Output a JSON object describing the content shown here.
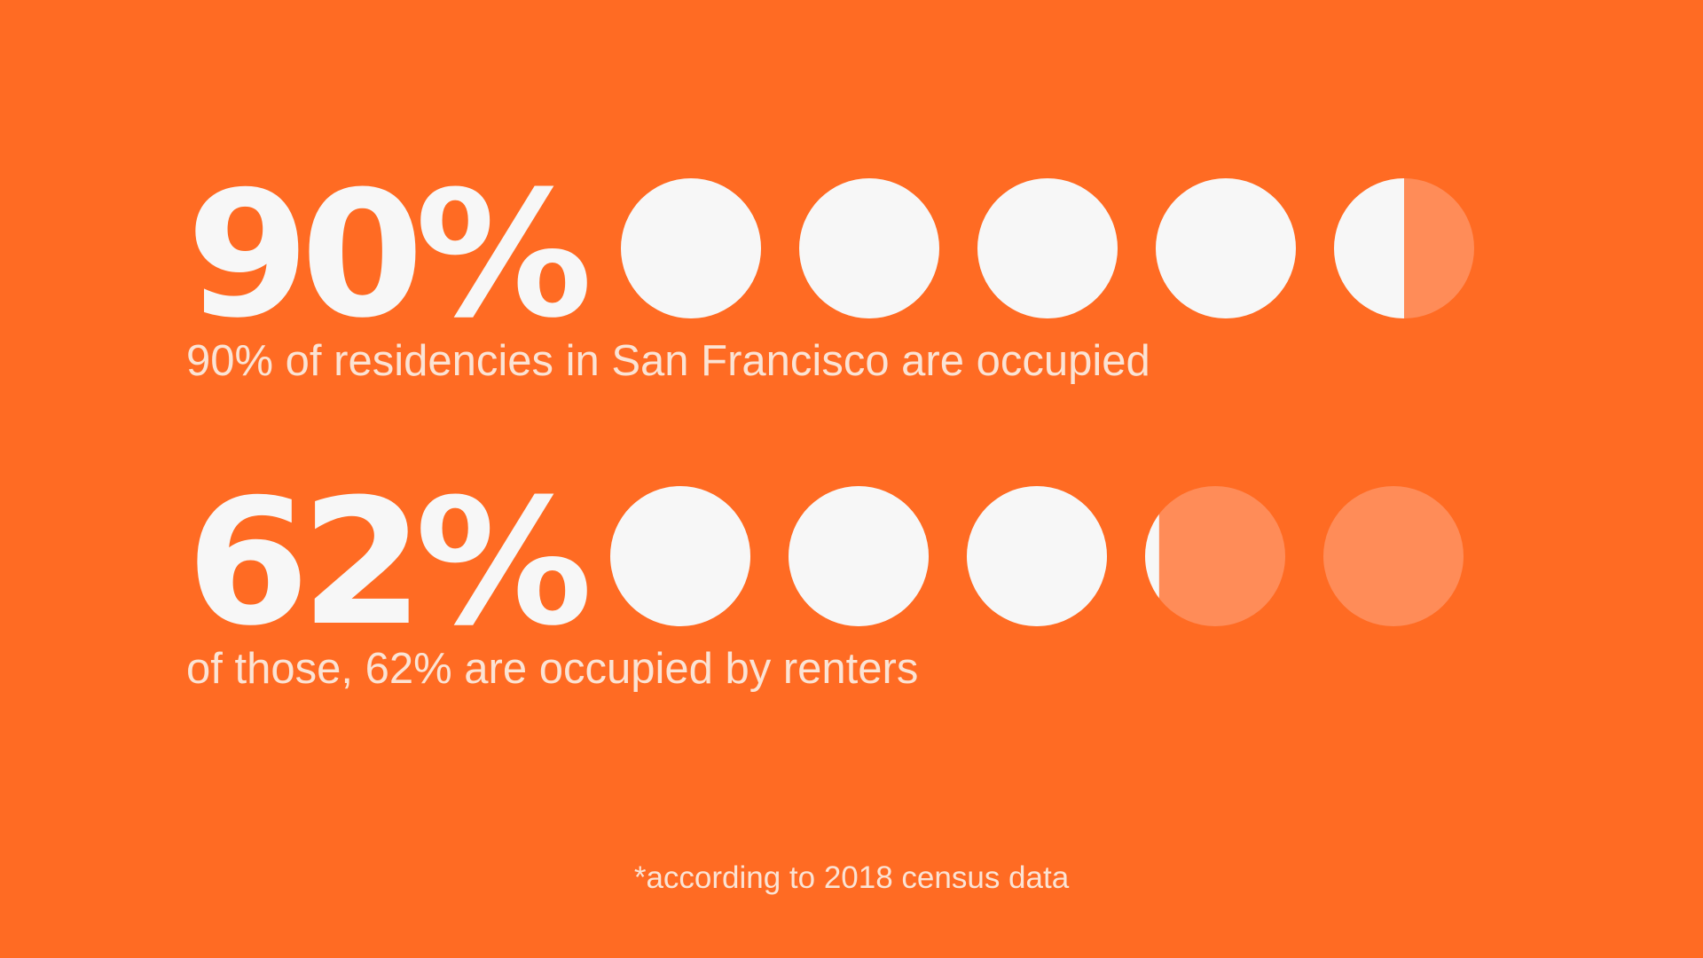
{
  "colors": {
    "background": "#FF6B23",
    "dot_filled": "#F7F7F7",
    "dot_empty": "#FF8C58"
  },
  "stats": [
    {
      "value_text": "90%",
      "caption": "90% of residencies in San Francisco are occupied"
    },
    {
      "value_text": "62%",
      "caption": "of those, 62% are occupied by renters"
    }
  ],
  "footnote": "*according to 2018 census data",
  "chart_data": [
    {
      "type": "pictogram",
      "total_icons": 5,
      "percent": 90,
      "label": "90%"
    },
    {
      "type": "pictogram",
      "total_icons": 5,
      "percent": 62,
      "label": "62%"
    }
  ]
}
